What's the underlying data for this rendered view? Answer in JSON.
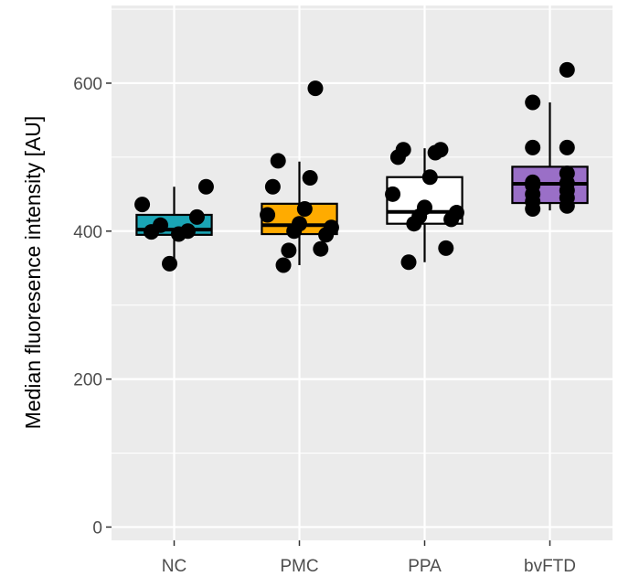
{
  "chart_data": {
    "type": "boxplot",
    "title": "",
    "xlabel": "",
    "ylabel": "Median fluoresence intensity [AU]",
    "ylim": [
      -18,
      705
    ],
    "yticks": [
      0,
      200,
      400,
      600
    ],
    "y_minor_ticks": [
      100,
      300,
      500,
      700
    ],
    "grid": true,
    "legend": "none",
    "categories": [
      "NC",
      "PMC",
      "PPA",
      "bvFTD"
    ],
    "boxes": [
      {
        "category": "NC",
        "fill": "#1aa5b5",
        "min": 356,
        "q1": 395,
        "median": 402,
        "q3": 422,
        "max": 460
      },
      {
        "category": "PMC",
        "fill": "#ffab00",
        "min": 354,
        "q1": 396,
        "median": 408,
        "q3": 437,
        "max": 494
      },
      {
        "category": "PPA",
        "fill": "#ffffff",
        "min": 358,
        "q1": 410,
        "median": 426,
        "q3": 473,
        "max": 512
      },
      {
        "category": "bvFTD",
        "fill": "#9a6fc7",
        "min": 428,
        "q1": 438,
        "median": 464,
        "q3": 487,
        "max": 574
      }
    ],
    "points": [
      {
        "category": "NC",
        "values": [
          356,
          408,
          399,
          436,
          460,
          419,
          400,
          396
        ]
      },
      {
        "category": "PMC",
        "values": [
          354,
          376,
          374,
          395,
          400,
          405,
          410,
          422,
          430,
          460,
          472,
          495,
          593
        ]
      },
      {
        "category": "PPA",
        "values": [
          358,
          377,
          410,
          416,
          420,
          425,
          432,
          450,
          473,
          500,
          506,
          510,
          510
        ]
      },
      {
        "category": "bvFTD",
        "values": [
          430,
          434,
          440,
          445,
          450,
          455,
          462,
          465,
          466,
          478,
          513,
          513,
          574,
          618
        ]
      }
    ],
    "colors": {
      "panel_background": "#ebebeb",
      "grid": "#ffffff",
      "point": "#000000",
      "box_outline": "#000000",
      "axis_text": "#4d4d4d"
    }
  }
}
